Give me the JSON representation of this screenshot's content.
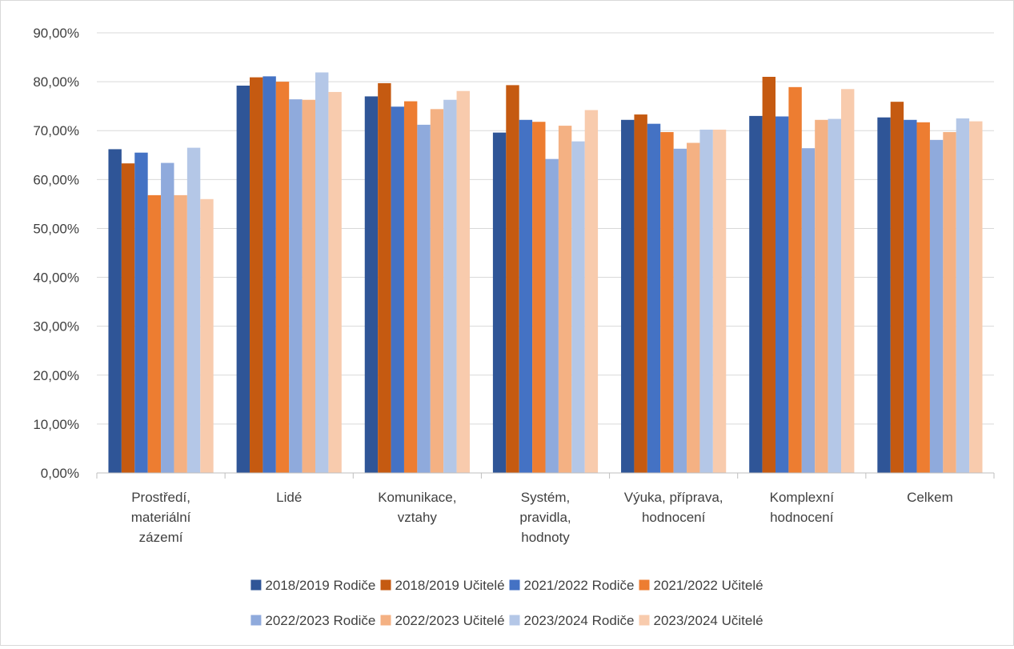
{
  "chart_data": {
    "type": "bar",
    "title": "",
    "xlabel": "",
    "ylabel": "",
    "ylim": [
      0,
      90
    ],
    "y_ticks": [
      "0,00%",
      "10,00%",
      "20,00%",
      "30,00%",
      "40,00%",
      "50,00%",
      "60,00%",
      "70,00%",
      "80,00%",
      "90,00%"
    ],
    "grid": "horizontal",
    "legend_position": "bottom",
    "categories": [
      [
        "Prostředí,",
        "materiální",
        "zázemí"
      ],
      [
        "Lidé"
      ],
      [
        "Komunikace,",
        "vztahy"
      ],
      [
        "Systém,",
        "pravidla,",
        "hodnoty"
      ],
      [
        "Výuka, příprava,",
        "hodnocení"
      ],
      [
        "Komplexní",
        "hodnocení"
      ],
      [
        "Celkem"
      ]
    ],
    "series": [
      {
        "name": "2018/2019 Rodiče",
        "color": "#2f5597",
        "values": [
          66.2,
          79.2,
          77.0,
          69.6,
          72.2,
          73.0,
          72.7
        ]
      },
      {
        "name": "2018/2019 Učitelé",
        "color": "#c55a11",
        "values": [
          63.3,
          80.9,
          79.7,
          79.3,
          73.3,
          81.0,
          75.9
        ]
      },
      {
        "name": "2021/2022 Rodiče",
        "color": "#4472c4",
        "values": [
          65.5,
          81.1,
          74.9,
          72.2,
          71.4,
          72.9,
          72.2
        ]
      },
      {
        "name": "2021/2022 Učitelé",
        "color": "#ed7d31",
        "values": [
          56.8,
          80.0,
          76.0,
          71.8,
          69.7,
          78.9,
          71.7
        ]
      },
      {
        "name": "2022/2023 Rodiče",
        "color": "#8faadc",
        "values": [
          63.4,
          76.4,
          71.2,
          64.2,
          66.3,
          66.4,
          68.1
        ]
      },
      {
        "name": "2022/2023 Učitelé",
        "color": "#f4b183",
        "values": [
          56.8,
          76.3,
          74.4,
          71.0,
          67.5,
          72.2,
          69.7
        ]
      },
      {
        "name": "2023/2024 Rodiče",
        "color": "#b4c7e7",
        "values": [
          66.5,
          81.9,
          76.3,
          67.8,
          70.2,
          72.4,
          72.5
        ]
      },
      {
        "name": "2023/2024 Učitelé",
        "color": "#f8cbad",
        "values": [
          56.0,
          77.9,
          78.1,
          74.2,
          70.2,
          78.5,
          71.9
        ]
      }
    ]
  }
}
